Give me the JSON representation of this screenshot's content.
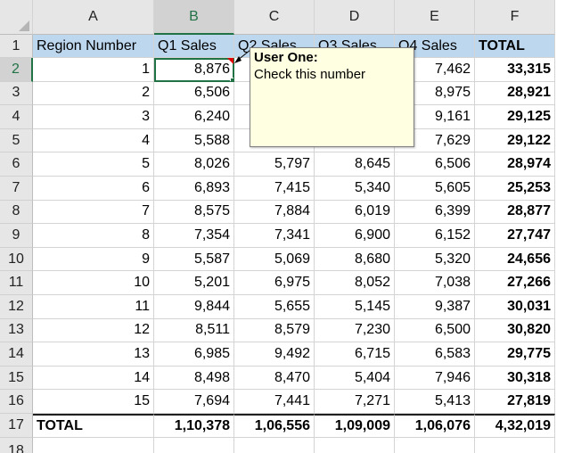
{
  "columns": [
    "A",
    "B",
    "C",
    "D",
    "E",
    "F"
  ],
  "header": [
    "Region Number",
    "Q1 Sales",
    "Q2 Sales",
    "Q3 Sales",
    "Q4 Sales",
    "TOTAL"
  ],
  "rows": [
    {
      "num": "2",
      "a": "1",
      "b": "8,876",
      "c": "",
      "d": "",
      "e": "7,462",
      "f": "33,315"
    },
    {
      "num": "3",
      "a": "2",
      "b": "6,506",
      "c": "",
      "d": "",
      "e": "8,975",
      "f": "28,921"
    },
    {
      "num": "4",
      "a": "3",
      "b": "6,240",
      "c": "",
      "d": "",
      "e": "9,161",
      "f": "29,125"
    },
    {
      "num": "5",
      "a": "4",
      "b": "5,588",
      "c": "",
      "d": "",
      "e": "7,629",
      "f": "29,122"
    },
    {
      "num": "6",
      "a": "5",
      "b": "8,026",
      "c": "5,797",
      "d": "8,645",
      "e": "6,506",
      "f": "28,974"
    },
    {
      "num": "7",
      "a": "6",
      "b": "6,893",
      "c": "7,415",
      "d": "5,340",
      "e": "5,605",
      "f": "25,253"
    },
    {
      "num": "8",
      "a": "7",
      "b": "8,575",
      "c": "7,884",
      "d": "6,019",
      "e": "6,399",
      "f": "28,877"
    },
    {
      "num": "9",
      "a": "8",
      "b": "7,354",
      "c": "7,341",
      "d": "6,900",
      "e": "6,152",
      "f": "27,747"
    },
    {
      "num": "10",
      "a": "9",
      "b": "5,587",
      "c": "5,069",
      "d": "8,680",
      "e": "5,320",
      "f": "24,656"
    },
    {
      "num": "11",
      "a": "10",
      "b": "5,201",
      "c": "6,975",
      "d": "8,052",
      "e": "7,038",
      "f": "27,266"
    },
    {
      "num": "12",
      "a": "11",
      "b": "9,844",
      "c": "5,655",
      "d": "5,145",
      "e": "9,387",
      "f": "30,031"
    },
    {
      "num": "13",
      "a": "12",
      "b": "8,511",
      "c": "8,579",
      "d": "7,230",
      "e": "6,500",
      "f": "30,820"
    },
    {
      "num": "14",
      "a": "13",
      "b": "6,985",
      "c": "9,492",
      "d": "6,715",
      "e": "6,583",
      "f": "29,775"
    },
    {
      "num": "15",
      "a": "14",
      "b": "8,498",
      "c": "8,470",
      "d": "5,404",
      "e": "7,946",
      "f": "30,318"
    },
    {
      "num": "16",
      "a": "15",
      "b": "7,694",
      "c": "7,441",
      "d": "7,271",
      "e": "5,413",
      "f": "27,819"
    }
  ],
  "total_row": {
    "num": "17",
    "a": "TOTAL",
    "b": "1,10,378",
    "c": "1,06,556",
    "d": "1,09,009",
    "e": "1,06,076",
    "f": "4,32,019"
  },
  "header_row_num": "1",
  "last_row_num": "18",
  "comment": {
    "author": "User One:",
    "text": "Check this number"
  },
  "colors": {
    "header_fill": "#bdd7ee",
    "selection": "#217346",
    "comment_fill": "#ffffe1"
  }
}
